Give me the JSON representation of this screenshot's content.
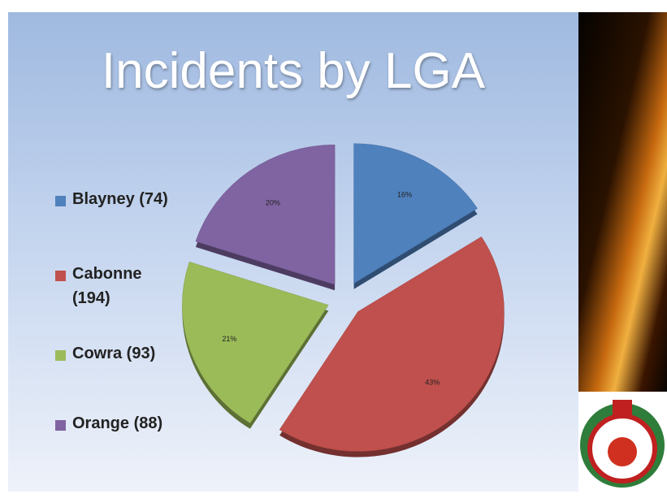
{
  "chart_data": {
    "type": "pie",
    "title": "Incidents by LGA",
    "categories": [
      "Blayney (74)",
      "Cabonne (194)",
      "Cowra (93)",
      "Orange (88)"
    ],
    "values": [
      16,
      43,
      21,
      20
    ],
    "value_labels": [
      "16%",
      "43%",
      "21%",
      "20%"
    ],
    "colors": [
      "#4f81bd",
      "#c0504d",
      "#9bbb59",
      "#8064a2"
    ],
    "legend": "left"
  }
}
